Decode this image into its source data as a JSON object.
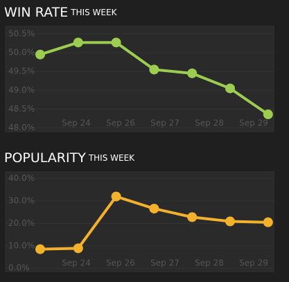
{
  "chart_data": [
    {
      "type": "line",
      "title": "WIN RATE",
      "subtitle": "THIS WEEK",
      "x_tick_labels": [
        "Sep 24",
        "Sep 26",
        "Sep 27",
        "Sep 28",
        "Sep 29"
      ],
      "series": [
        {
          "color": "#9ccc50",
          "values": [
            49.95,
            50.27,
            50.27,
            49.55,
            49.45,
            49.05,
            48.36
          ]
        }
      ],
      "ylim": [
        47.9,
        50.7
      ],
      "yticks": [
        {
          "value": 48.0,
          "label": "48.0%"
        },
        {
          "value": 48.5,
          "label": "48.5%"
        },
        {
          "value": 49.0,
          "label": "49.0%"
        },
        {
          "value": 49.5,
          "label": "49.5%"
        },
        {
          "value": 50.0,
          "label": "50.0%"
        },
        {
          "value": 50.5,
          "label": "50.5%"
        }
      ],
      "grid": true
    },
    {
      "type": "line",
      "title": "POPULARITY",
      "subtitle": "THIS WEEK",
      "x_tick_labels": [
        "Sep 24",
        "Sep 26",
        "Sep 27",
        "Sep 28",
        "Sep 29"
      ],
      "series": [
        {
          "color": "#f4b12c",
          "values": [
            8.5,
            8.9,
            32,
            26.6,
            22.8,
            20.9,
            20.5
          ]
        }
      ],
      "ylim": [
        -1.5,
        43
      ],
      "yticks": [
        {
          "value": 0,
          "label": "0.0%"
        },
        {
          "value": 10,
          "label": "10.0%"
        },
        {
          "value": 20,
          "label": "20.0%"
        },
        {
          "value": 30,
          "label": "30.0%"
        },
        {
          "value": 40,
          "label": "40.0%"
        }
      ],
      "grid": true
    }
  ]
}
